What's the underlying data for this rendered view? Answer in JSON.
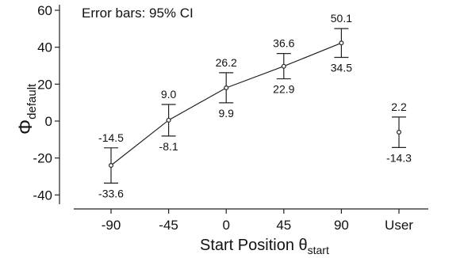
{
  "chart_data": {
    "type": "scatter",
    "annotation": "Error bars: 95% CI",
    "xlabel": {
      "main": "Start Position θ",
      "sub": "start"
    },
    "ylabel": {
      "main": "Φ",
      "sub": "default"
    },
    "ylim": [
      -45,
      63
    ],
    "yticks": [
      -40,
      -20,
      0,
      20,
      40,
      60
    ],
    "ytick_labels": [
      "-40",
      "-20",
      "0",
      "20",
      "40",
      "60"
    ],
    "categories": [
      "-90",
      "-45",
      "0",
      "45",
      "90",
      "User"
    ],
    "points": [
      {
        "category": "-90",
        "mean": -24,
        "upper": -14.5,
        "lower": -33.6,
        "upper_label": "-14.5",
        "lower_label": "-33.6",
        "connected": true
      },
      {
        "category": "-45",
        "mean": 0.5,
        "upper": 9.0,
        "lower": -8.1,
        "upper_label": "9.0",
        "lower_label": "-8.1",
        "connected": true
      },
      {
        "category": "0",
        "mean": 18,
        "upper": 26.2,
        "lower": 9.9,
        "upper_label": "26.2",
        "lower_label": "9.9",
        "connected": true
      },
      {
        "category": "45",
        "mean": 29.7,
        "upper": 36.6,
        "lower": 22.9,
        "upper_label": "36.6",
        "lower_label": "22.9",
        "connected": true
      },
      {
        "category": "90",
        "mean": 42.3,
        "upper": 50.1,
        "lower": 34.5,
        "upper_label": "50.1",
        "lower_label": "34.5",
        "connected": true
      },
      {
        "category": "User",
        "mean": -6,
        "upper": 2.2,
        "lower": -14.3,
        "upper_label": "2.2",
        "lower_label": "-14.3",
        "connected": false
      }
    ]
  }
}
